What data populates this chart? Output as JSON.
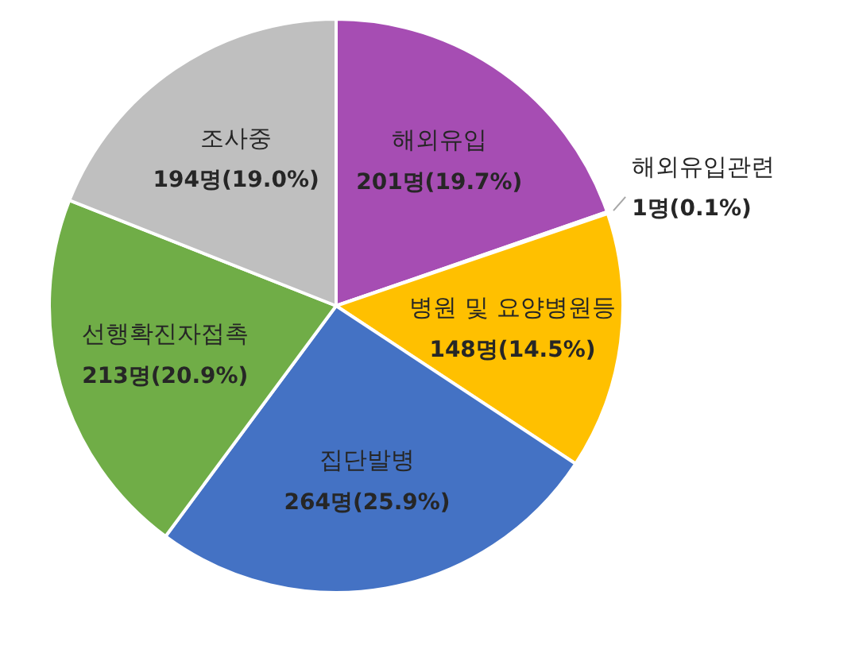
{
  "chart_data": {
    "type": "pie",
    "categories": [
      "해외유입",
      "해외유입관련",
      "병원 및 요양병원등",
      "집단발병",
      "선행확진자접촉",
      "조사중"
    ],
    "values": [
      201,
      1,
      148,
      264,
      213,
      194
    ],
    "colors": [
      "#a64db3",
      "#a5a5a5",
      "#ffc000",
      "#4472c4",
      "#70ad47",
      "#bfbfbf"
    ],
    "value_labels": [
      "201명(19.7%)",
      "1명(0.1%)",
      "148명(14.5%)",
      "264명(25.9%)",
      "213명(20.9%)",
      "194명(19.0%)"
    ],
    "legend": false
  }
}
